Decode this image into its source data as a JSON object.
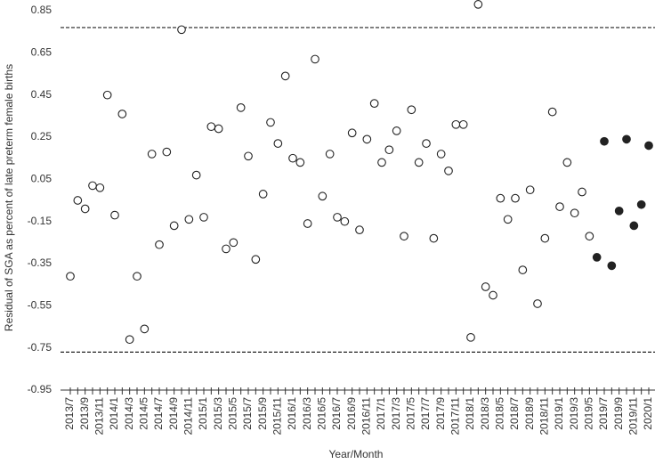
{
  "chart_data": {
    "type": "scatter",
    "xlabel": "Year/Month",
    "ylabel": "Residual of SGA as percent of late preterm female births",
    "categories": [
      "2013/7",
      null,
      "2013/9",
      null,
      "2013/11",
      null,
      "2014/1",
      null,
      "2014/3",
      null,
      "2014/5",
      null,
      "2014/7",
      null,
      "2014/9",
      null,
      "2014/11",
      null,
      "2015/1",
      null,
      "2015/3",
      null,
      "2015/5",
      null,
      "2015/7",
      null,
      "2015/9",
      null,
      "2015/11",
      null,
      "2016/1",
      null,
      "2016/3",
      null,
      "2016/5",
      null,
      "2016/7",
      null,
      "2016/9",
      null,
      "2016/11",
      null,
      "2017/1",
      null,
      "2017/3",
      null,
      "2017/5",
      null,
      "2017/7",
      null,
      "2017/9",
      null,
      "2017/11",
      null,
      "2018/1",
      null,
      "2018/3",
      null,
      "2018/5",
      null,
      "2018/7",
      null,
      "2018/9",
      null,
      "2018/11",
      null,
      "2019/1",
      null,
      "2019/3",
      null,
      "2019/5",
      null,
      "2019/7",
      null,
      "2019/9",
      null,
      "2019/11",
      null,
      "2020/1"
    ],
    "series": [
      {
        "color": "#222222",
        "filled": false,
        "values": [
          -0.41,
          -0.05,
          -0.09,
          0.02,
          0.01,
          0.45,
          -0.12,
          0.36,
          -0.71,
          -0.41,
          -0.66,
          0.17,
          -0.26,
          0.18,
          -0.17,
          0.76,
          -0.14,
          0.07,
          -0.13,
          0.3,
          0.29,
          -0.28,
          -0.25,
          0.39,
          0.16,
          -0.33,
          -0.02,
          0.32,
          0.22,
          0.54,
          0.15,
          0.13,
          -0.16,
          0.62,
          -0.03,
          0.17,
          -0.13,
          -0.15,
          0.27,
          -0.19,
          0.24,
          0.41,
          0.13,
          0.19,
          0.28,
          -0.22,
          0.38,
          0.13,
          0.22,
          -0.23,
          0.17,
          0.09,
          0.31,
          0.31,
          -0.7,
          0.88,
          -0.46,
          -0.5,
          -0.04,
          -0.14,
          -0.04,
          -0.38,
          0.0,
          -0.54,
          -0.23,
          0.37,
          -0.08,
          0.13,
          -0.11,
          -0.01,
          -0.22,
          null,
          null,
          null,
          null,
          null,
          null,
          null,
          null
        ]
      },
      {
        "color": "#222222",
        "filled": true,
        "values": [
          null,
          null,
          null,
          null,
          null,
          null,
          null,
          null,
          null,
          null,
          null,
          null,
          null,
          null,
          null,
          null,
          null,
          null,
          null,
          null,
          null,
          null,
          null,
          null,
          null,
          null,
          null,
          null,
          null,
          null,
          null,
          null,
          null,
          null,
          null,
          null,
          null,
          null,
          null,
          null,
          null,
          null,
          null,
          null,
          null,
          null,
          null,
          null,
          null,
          null,
          null,
          null,
          null,
          null,
          null,
          null,
          null,
          null,
          null,
          null,
          null,
          null,
          null,
          null,
          null,
          null,
          null,
          null,
          null,
          null,
          null,
          -0.32,
          0.23,
          -0.36,
          -0.1,
          0.24,
          -0.17,
          -0.07,
          0.21
        ]
      }
    ],
    "reference_lines": [
      0.77,
      -0.77
    ],
    "ylim": [
      -0.95,
      0.85
    ],
    "yticks": [
      -0.95,
      -0.75,
      -0.55,
      -0.35,
      -0.15,
      0.05,
      0.25,
      0.45,
      0.65,
      0.85
    ]
  }
}
